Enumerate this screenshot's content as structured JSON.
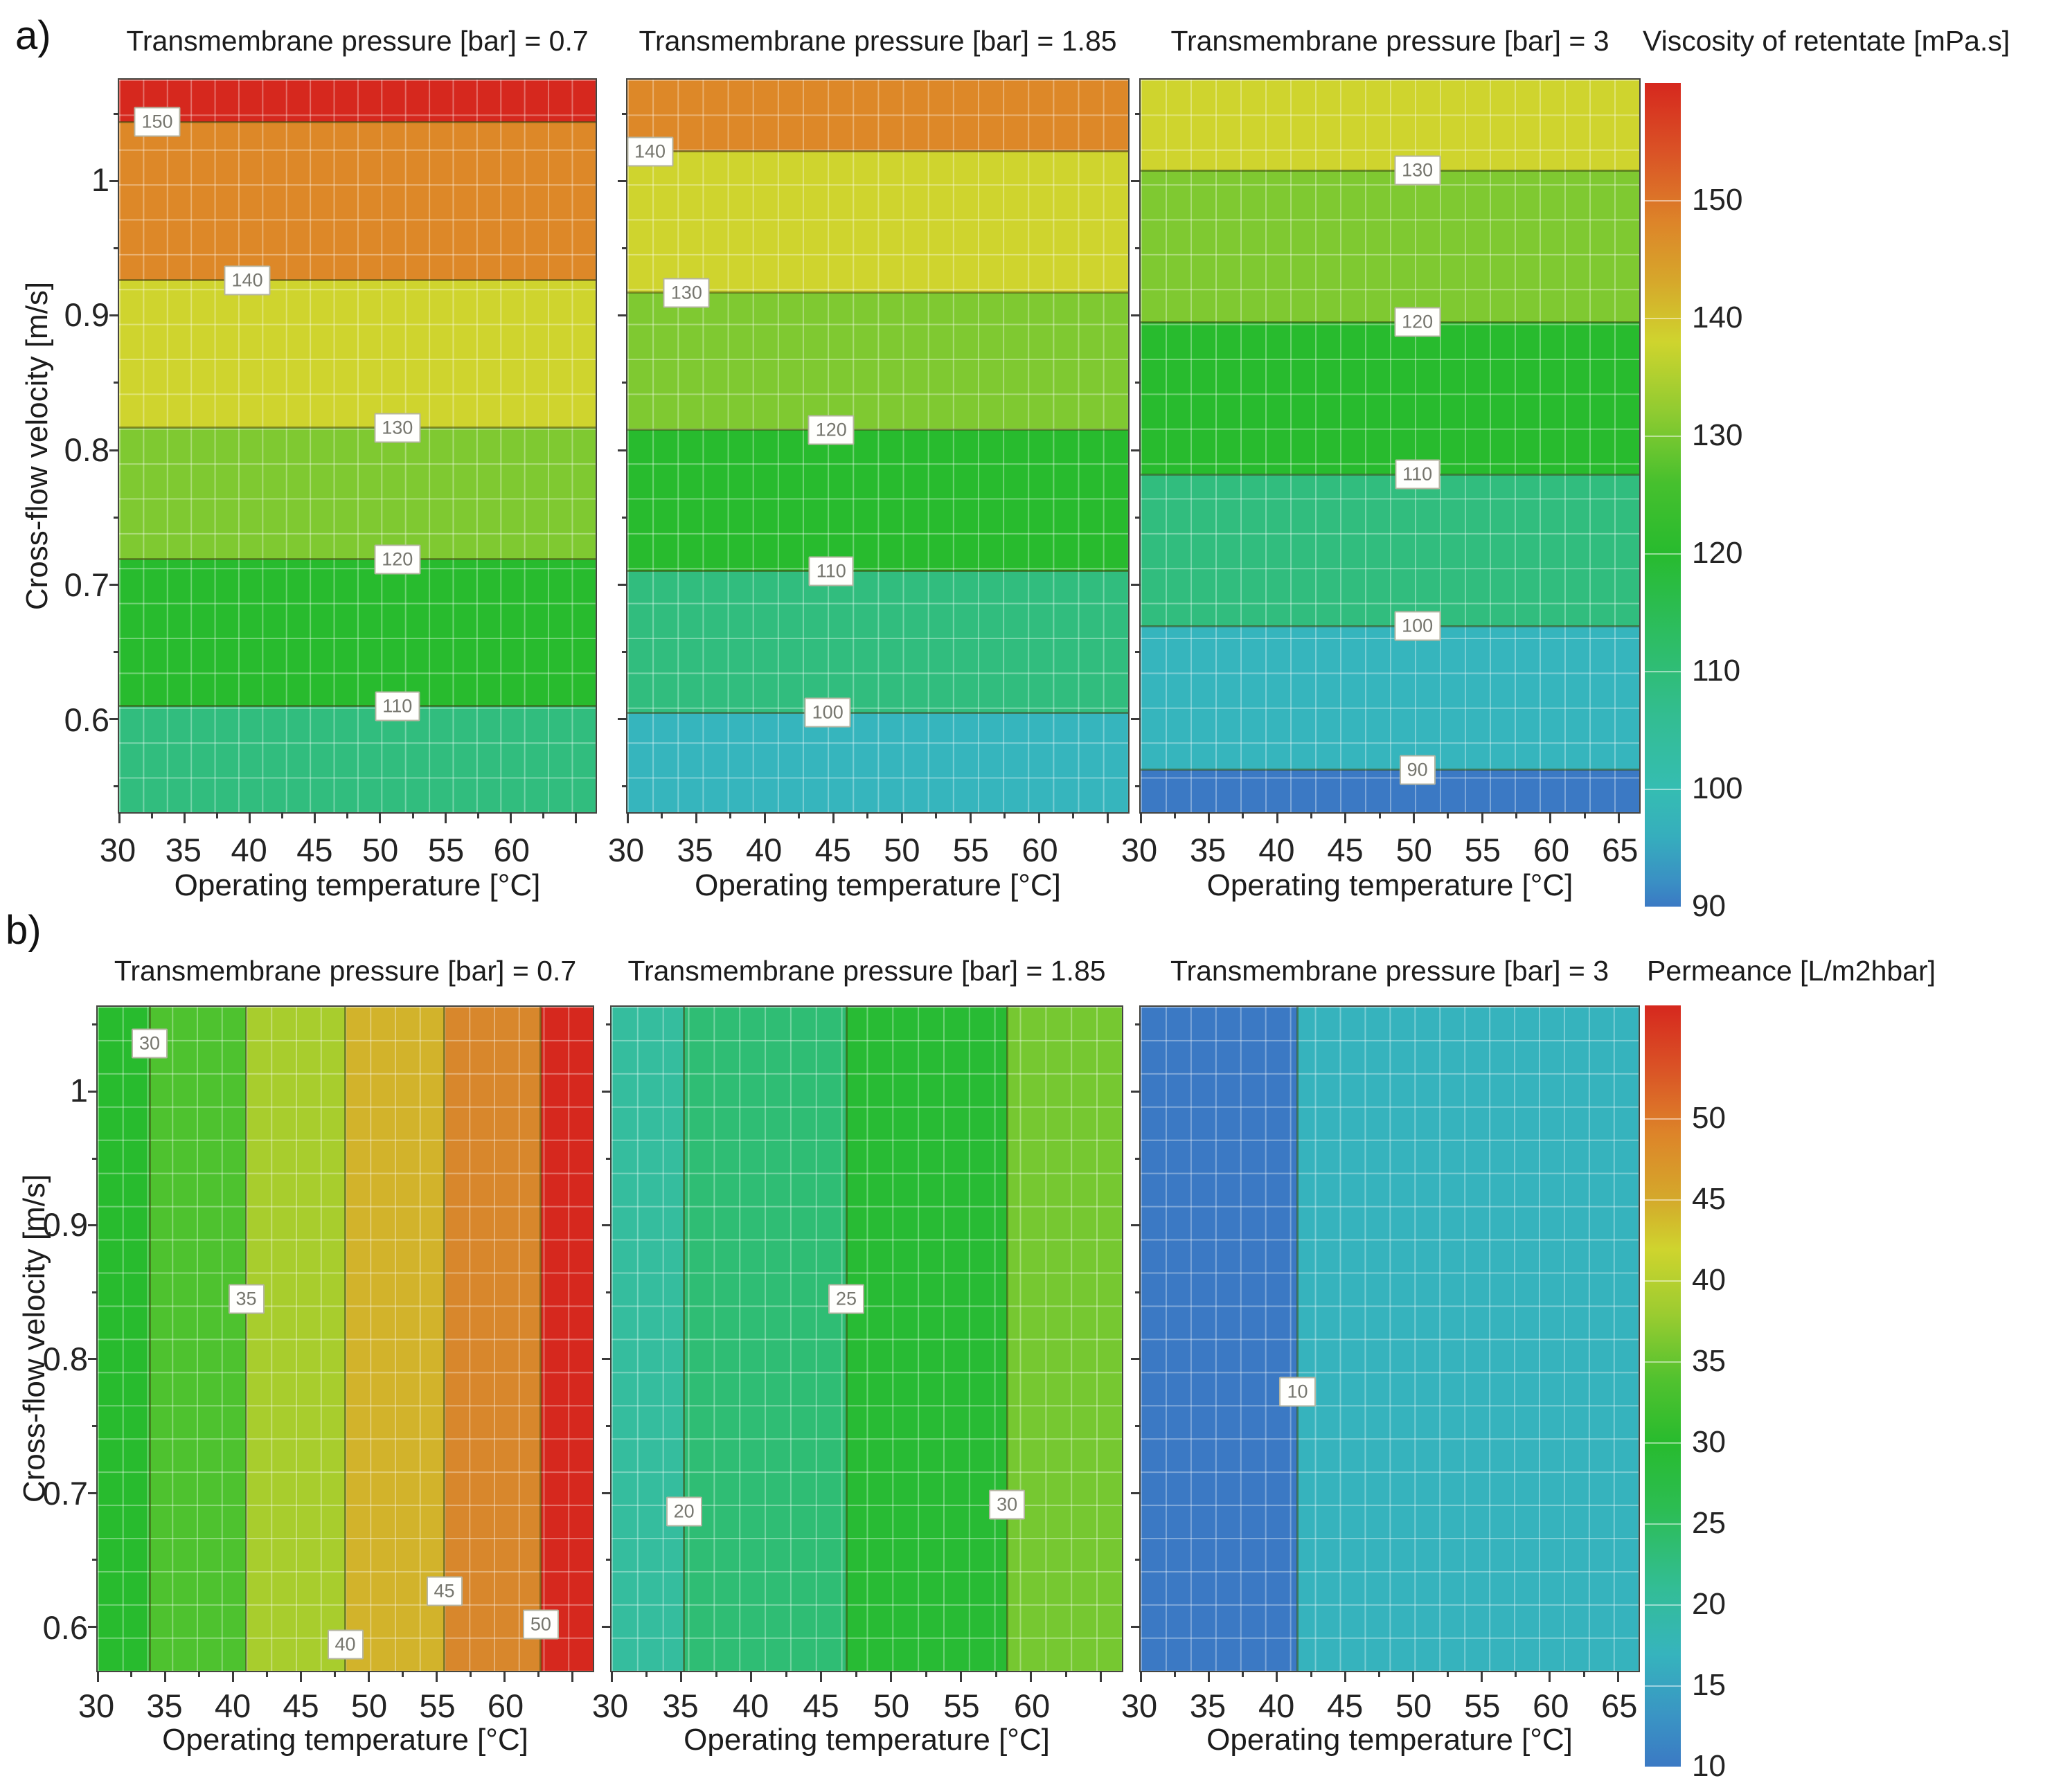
{
  "chart_data": [
    {
      "type": "heatmap",
      "row_label": "a)",
      "orientation": "horizontal",
      "xlabel": "Operating temperature [°C]",
      "ylabel": "Cross-flow velocity [m/s]",
      "xlim": [
        30,
        66.5
      ],
      "ylim": [
        0.53,
        1.075
      ],
      "y_tick_labels": [
        "1",
        "0.9",
        "0.8",
        "0.7",
        "0.6"
      ],
      "grid": true,
      "colorbar": {
        "title": "Viscosity of retentate [mPa.s]",
        "tick_labels": [
          "150",
          "140",
          "130",
          "120",
          "110",
          "100",
          "90"
        ],
        "range": [
          90,
          160
        ],
        "stops": [
          [
            "#d6281e",
            0
          ],
          [
            "#da5426",
            8.6
          ],
          [
            "#dd8529",
            17
          ],
          [
            "#d6a72b",
            24
          ],
          [
            "#cfd42e",
            31.4
          ],
          [
            "#8fcb31",
            40
          ],
          [
            "#46c02e",
            48.6
          ],
          [
            "#28bb2e",
            57
          ],
          [
            "#2dbd62",
            67
          ],
          [
            "#33bd92",
            77
          ],
          [
            "#35bdb2",
            85.7
          ],
          [
            "#36aebd",
            91.4
          ],
          [
            "#3a8fc4",
            97
          ],
          [
            "#3b79c4",
            100
          ]
        ]
      },
      "panels": [
        {
          "title": "Transmembrane pressure [bar] = 0.7",
          "x_tick_labels": [
            "30",
            "35",
            "40",
            "45",
            "50",
            "55",
            "60"
          ],
          "band_colors": [
            "#d6281e",
            "#dd8828",
            "#cfd42e",
            "#7fc931",
            "#28bb2e",
            "#31bd7e"
          ],
          "contours": [
            {
              "value": "150",
              "pos": 5.8,
              "label_pos": 8
            },
            {
              "value": "140",
              "pos": 27.4,
              "label_pos": 26.9
            },
            {
              "value": "130",
              "pos": 47.5,
              "label_pos": 58.4
            },
            {
              "value": "120",
              "pos": 65.5,
              "label_pos": 58.4
            },
            {
              "value": "110",
              "pos": 85.5,
              "label_pos": 58.4
            }
          ]
        },
        {
          "title": "Transmembrane pressure [bar] = 1.85",
          "x_tick_labels": [
            "30",
            "35",
            "40",
            "45",
            "50",
            "55",
            "60"
          ],
          "band_colors": [
            "#dd8828",
            "#cfd42e",
            "#7fc931",
            "#28bb2e",
            "#31bd7e",
            "#36b5bd"
          ],
          "contours": [
            {
              "value": "140",
              "pos": 9.8,
              "label_pos": 4.5
            },
            {
              "value": "130",
              "pos": 29.1,
              "label_pos": 11.8
            },
            {
              "value": "120",
              "pos": 47.8,
              "label_pos": 40.7
            },
            {
              "value": "110",
              "pos": 67.1,
              "label_pos": 40.7
            },
            {
              "value": "100",
              "pos": 86.4,
              "label_pos": 40.0
            }
          ]
        },
        {
          "title": "Transmembrane pressure [bar] = 3",
          "x_tick_labels": [
            "30",
            "35",
            "40",
            "45",
            "50",
            "55",
            "60",
            "65"
          ],
          "band_colors": [
            "#cfd42e",
            "#7fc931",
            "#28bb2e",
            "#31bd7e",
            "#36b5bd",
            "#3b79c4"
          ],
          "contours": [
            {
              "value": "130",
              "pos": 12.4,
              "label_pos": 55.5
            },
            {
              "value": "120",
              "pos": 33.1,
              "label_pos": 55.5
            },
            {
              "value": "110",
              "pos": 53.9,
              "label_pos": 55.5
            },
            {
              "value": "100",
              "pos": 74.6,
              "label_pos": 55.5
            },
            {
              "value": "90",
              "pos": 94.2,
              "label_pos": 55.5
            }
          ]
        }
      ]
    },
    {
      "type": "heatmap",
      "row_label": "b)",
      "orientation": "vertical",
      "xlabel": "Operating temperature [°C]",
      "ylabel": "Cross-flow velocity [m/s]",
      "xlim": [
        30,
        66.5
      ],
      "ylim": [
        0.567,
        1.063
      ],
      "y_tick_labels": [
        "1",
        "0.9",
        "0.8",
        "0.7",
        "0.6"
      ],
      "grid": true,
      "colorbar": {
        "title": "Permeance [L/m2hbar]",
        "tick_labels": [
          "50",
          "45",
          "40",
          "35",
          "30",
          "25",
          "20",
          "15",
          "10"
        ],
        "range": [
          10,
          57
        ],
        "stops": [
          [
            "#d6281e",
            0
          ],
          [
            "#da5426",
            8.5
          ],
          [
            "#dd8529",
            17
          ],
          [
            "#d4a92b",
            25.5
          ],
          [
            "#cfd42e",
            32
          ],
          [
            "#9ccc30",
            40.4
          ],
          [
            "#52c22f",
            49
          ],
          [
            "#28bb2e",
            57.4
          ],
          [
            "#2cbd52",
            66
          ],
          [
            "#33bd96",
            76.6
          ],
          [
            "#36b4bd",
            85.1
          ],
          [
            "#3a93c4",
            93.6
          ],
          [
            "#3b79c4",
            100
          ]
        ]
      },
      "panels": [
        {
          "title": "Transmembrane pressure [bar] = 0.7",
          "x_tick_labels": [
            "30",
            "35",
            "40",
            "45",
            "50",
            "55",
            "60"
          ],
          "band_colors": [
            "#28bb2e",
            "#4ec22f",
            "#a8cd2d",
            "#d2b32b",
            "#d8872c",
            "#d6281e"
          ],
          "contours": [
            {
              "value": "30",
              "pos": 10.5,
              "label_pos": 5.5
            },
            {
              "value": "35",
              "pos": 30.0,
              "label_pos": 44
            },
            {
              "value": "40",
              "pos": 50.0,
              "label_pos": 96
            },
            {
              "value": "45",
              "pos": 70.0,
              "label_pos": 88
            },
            {
              "value": "50",
              "pos": 89.5,
              "label_pos": 93
            }
          ]
        },
        {
          "title": "Transmembrane pressure [bar] = 1.85",
          "x_tick_labels": [
            "30",
            "35",
            "40",
            "45",
            "50",
            "55",
            "60"
          ],
          "band_colors": [
            "#35bd9e",
            "#2fbd74",
            "#28bb34",
            "#76c831"
          ],
          "contours": [
            {
              "value": "20",
              "pos": 14.2,
              "label_pos": 76
            },
            {
              "value": "25",
              "pos": 46.0,
              "label_pos": 44
            },
            {
              "value": "30",
              "pos": 77.5,
              "label_pos": 75
            }
          ]
        },
        {
          "title": "Transmembrane pressure [bar] = 3",
          "x_tick_labels": [
            "30",
            "35",
            "40",
            "45",
            "50",
            "55",
            "60",
            "65"
          ],
          "band_colors": [
            "#3b79c4",
            "#36b3bd"
          ],
          "contours": [
            {
              "value": "10",
              "pos": 31.5,
              "label_pos": 58
            }
          ]
        }
      ]
    }
  ]
}
